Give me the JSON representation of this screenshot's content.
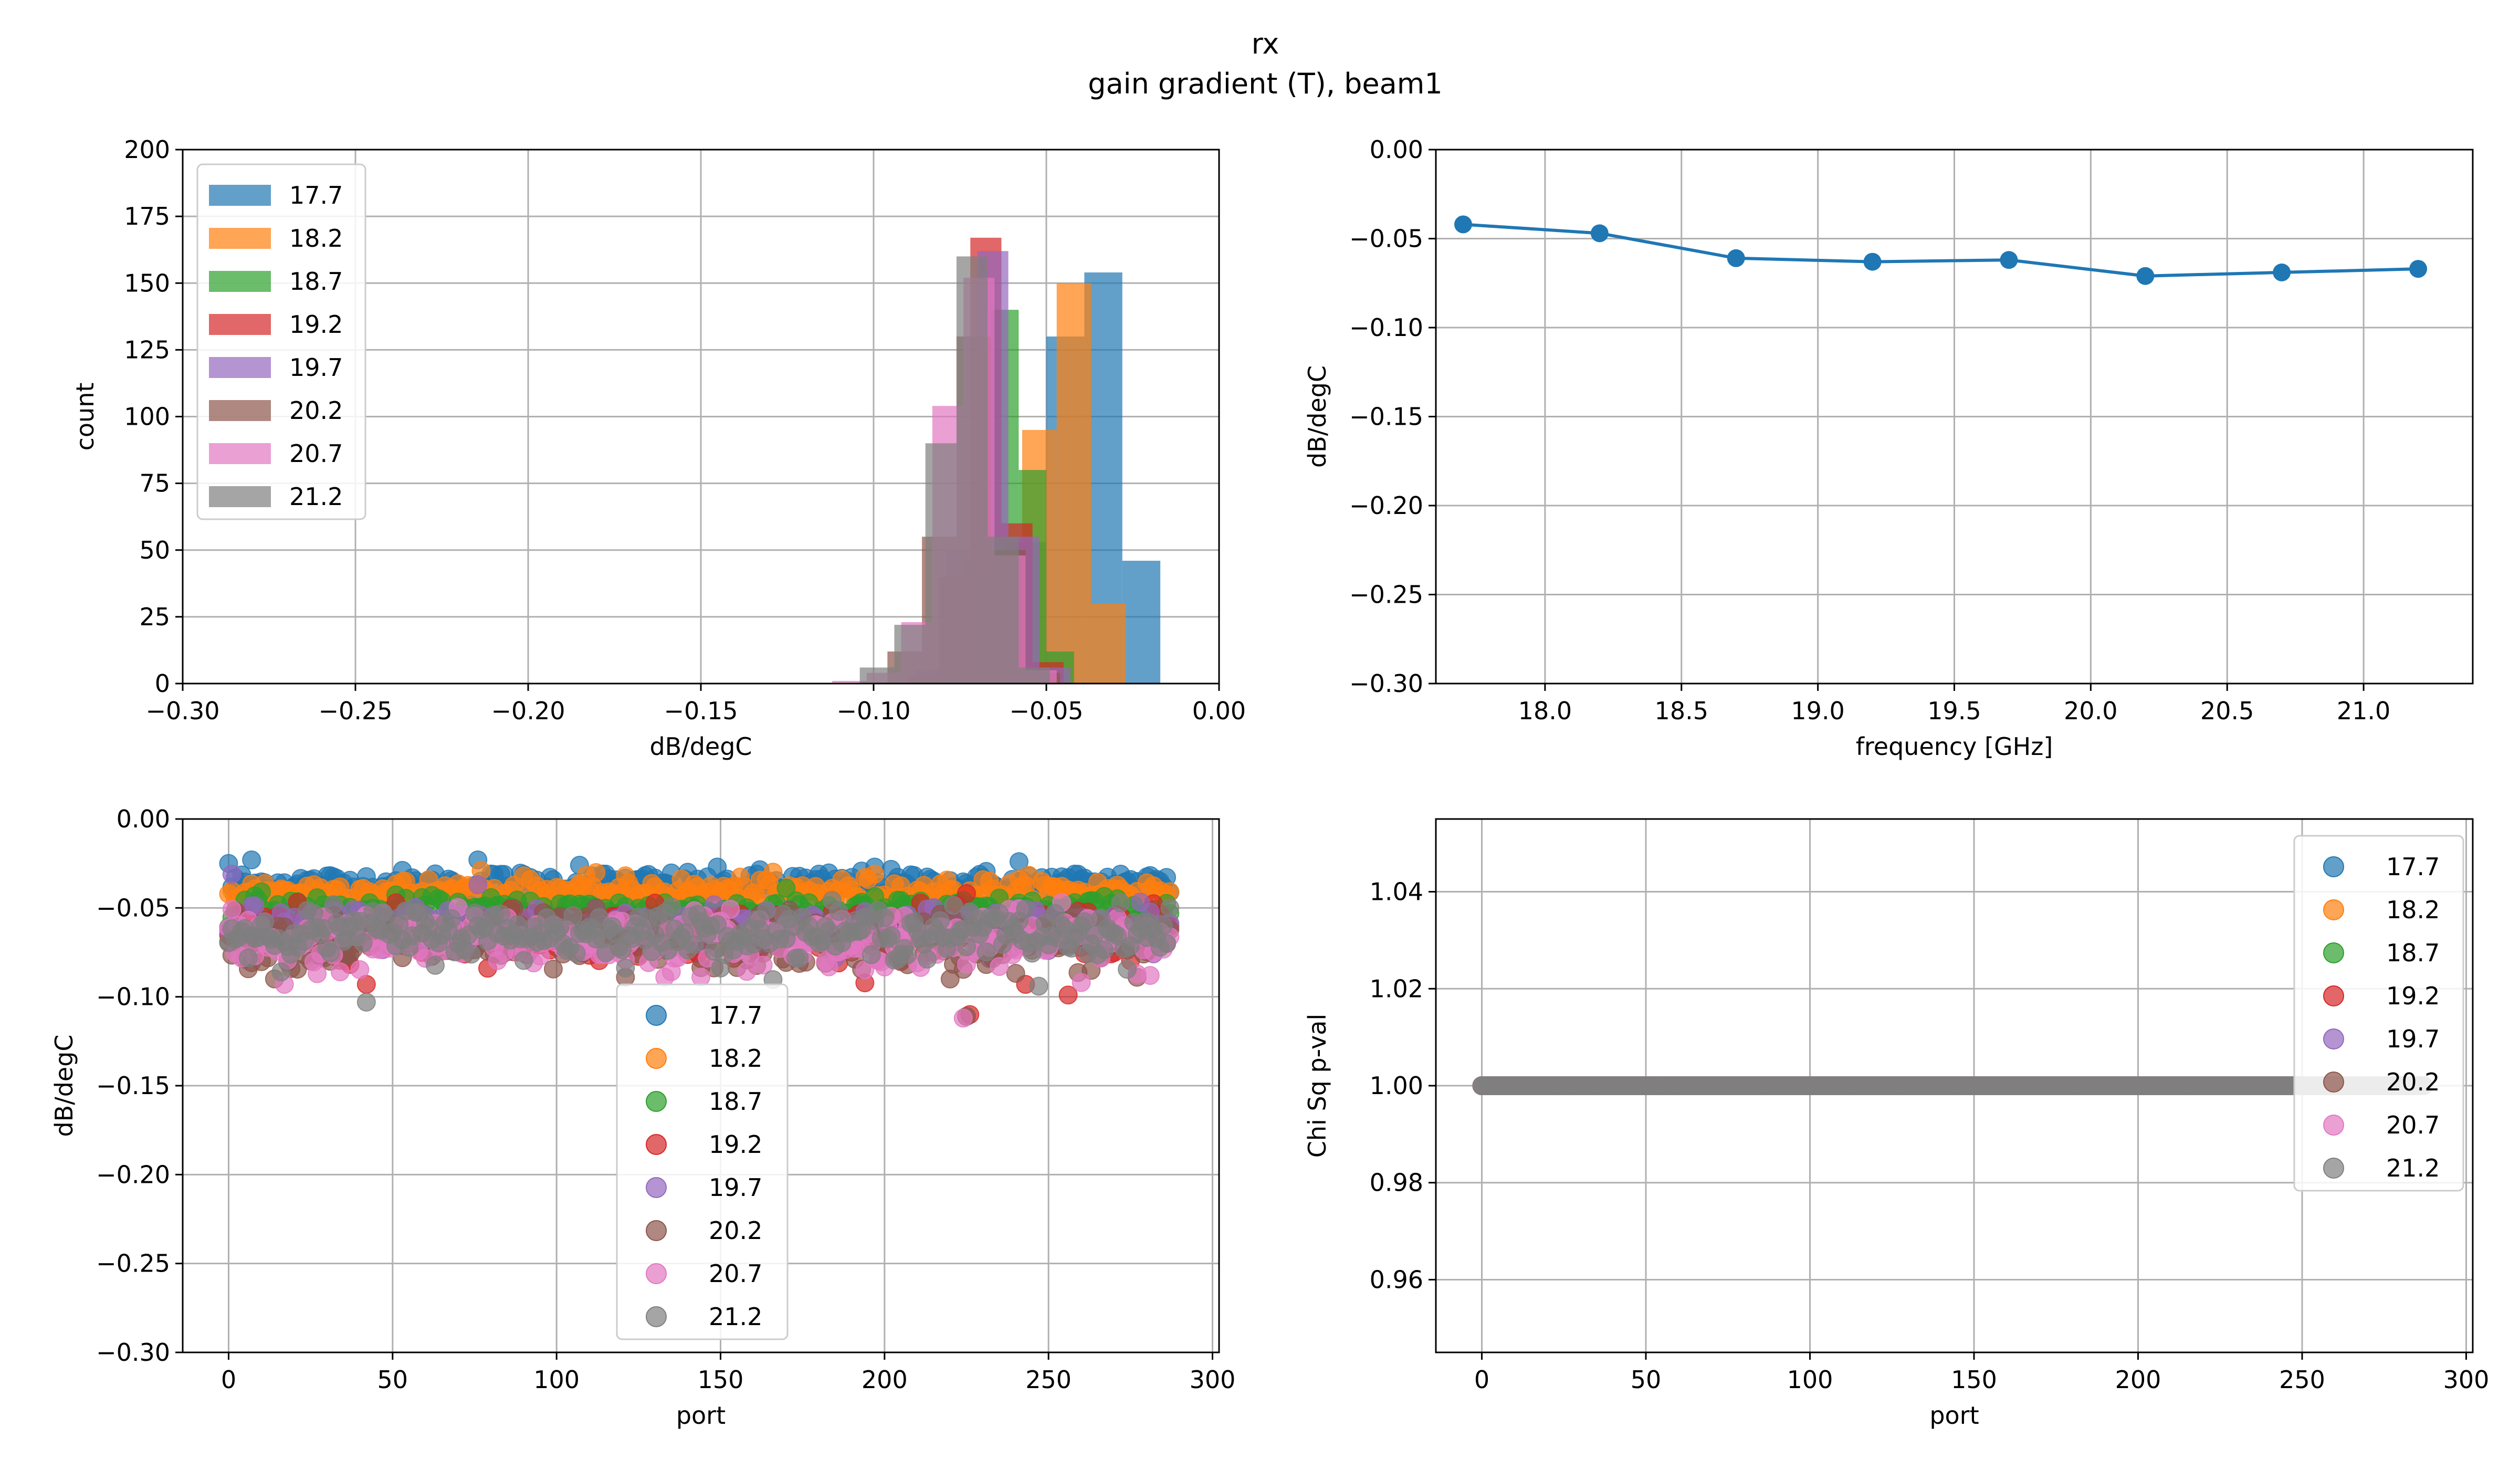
{
  "figure": {
    "title_line1": "rx",
    "title_line2": "gain gradient (T), beam1"
  },
  "colors": {
    "17.7": "#1f77b4",
    "18.2": "#ff7f0e",
    "18.7": "#2ca02c",
    "19.2": "#d62728",
    "19.7": "#9467bd",
    "20.2": "#8c564b",
    "20.7": "#e377c2",
    "21.2": "#7f7f7f"
  },
  "chart_data": [
    {
      "id": "histogram",
      "type": "bar",
      "subtype": "histogram",
      "xlabel": "dB/degC",
      "ylabel": "count",
      "xlim": [
        -0.3,
        0.0
      ],
      "ylim": [
        0,
        200
      ],
      "xticks": [
        "−0.30",
        "−0.25",
        "−0.20",
        "−0.15",
        "−0.10",
        "−0.05",
        "0.00"
      ],
      "yticks": [
        "0",
        "25",
        "50",
        "75",
        "100",
        "125",
        "150",
        "175",
        "200"
      ],
      "grid": true,
      "legend_position": "top-left",
      "series": [
        {
          "name": "17.7",
          "bins": [
            [
              -0.074,
              -0.062,
              4
            ],
            [
              -0.062,
              -0.05,
              53
            ],
            [
              -0.05,
              -0.039,
              130
            ],
            [
              -0.039,
              -0.028,
              154
            ],
            [
              -0.028,
              -0.017,
              46
            ],
            [
              -0.028,
              -0.017,
              0
            ],
            [
              -0.017,
              -0.017,
              0
            ]
          ]
        },
        {
          "name": "18.2",
          "bins": [
            [
              -0.077,
              -0.067,
              2
            ],
            [
              -0.067,
              -0.057,
              15
            ],
            [
              -0.057,
              -0.047,
              95
            ],
            [
              -0.047,
              -0.037,
              150
            ],
            [
              -0.037,
              -0.027,
              30
            ]
          ]
        },
        {
          "name": "18.7",
          "bins": [
            [
              -0.082,
              -0.074,
              3
            ],
            [
              -0.074,
              -0.066,
              45
            ],
            [
              -0.066,
              -0.058,
              140
            ],
            [
              -0.058,
              -0.05,
              80
            ],
            [
              -0.05,
              -0.042,
              12
            ]
          ]
        },
        {
          "name": "19.2",
          "bins": [
            [
              -0.09,
              -0.081,
              3
            ],
            [
              -0.081,
              -0.072,
              40
            ],
            [
              -0.072,
              -0.063,
              167
            ],
            [
              -0.063,
              -0.054,
              60
            ],
            [
              -0.054,
              -0.045,
              8
            ]
          ]
        },
        {
          "name": "19.7",
          "bins": [
            [
              -0.088,
              -0.079,
              5
            ],
            [
              -0.079,
              -0.07,
              50
            ],
            [
              -0.07,
              -0.061,
              162
            ],
            [
              -0.061,
              -0.052,
              55
            ],
            [
              -0.052,
              -0.043,
              6
            ]
          ]
        },
        {
          "name": "20.2",
          "bins": [
            [
              -0.096,
              -0.086,
              12
            ],
            [
              -0.086,
              -0.076,
              55
            ],
            [
              -0.076,
              -0.066,
              130
            ],
            [
              -0.066,
              -0.056,
              50
            ],
            [
              -0.056,
              -0.046,
              4
            ]
          ]
        },
        {
          "name": "20.7",
          "bins": [
            [
              -0.112,
              -0.102,
              1
            ],
            [
              -0.102,
              -0.092,
              4
            ],
            [
              -0.092,
              -0.083,
              23
            ],
            [
              -0.083,
              -0.074,
              104
            ],
            [
              -0.074,
              -0.065,
              152
            ],
            [
              -0.065,
              -0.056,
              48
            ],
            [
              -0.056,
              -0.047,
              5
            ]
          ]
        },
        {
          "name": "21.2",
          "bins": [
            [
              -0.104,
              -0.094,
              6
            ],
            [
              -0.094,
              -0.085,
              22
            ],
            [
              -0.085,
              -0.076,
              90
            ],
            [
              -0.076,
              -0.067,
              160
            ],
            [
              -0.067,
              -0.058,
              55
            ],
            [
              -0.058,
              -0.049,
              6
            ]
          ]
        }
      ]
    },
    {
      "id": "mean-line",
      "type": "line",
      "xlabel": "frequency [GHz]",
      "ylabel": "dB/degC",
      "xlim": [
        17.6,
        21.4
      ],
      "ylim": [
        -0.3,
        0.0
      ],
      "xticks": [
        "18.0",
        "18.5",
        "19.0",
        "19.5",
        "20.0",
        "20.5",
        "21.0"
      ],
      "yticks": [
        "0.00",
        "−0.05",
        "−0.10",
        "−0.15",
        "−0.20",
        "−0.25",
        "−0.30"
      ],
      "grid": true,
      "x": [
        17.7,
        18.2,
        18.7,
        19.2,
        19.7,
        20.2,
        20.7,
        21.2
      ],
      "y": [
        -0.042,
        -0.047,
        -0.061,
        -0.063,
        -0.062,
        -0.071,
        -0.069,
        -0.067
      ]
    },
    {
      "id": "port-scatter",
      "type": "scatter",
      "xlabel": "port",
      "ylabel": "dB/degC",
      "xlim": [
        -14,
        302
      ],
      "ylim": [
        -0.3,
        0.0
      ],
      "xticks": [
        "0",
        "50",
        "100",
        "150",
        "200",
        "250",
        "300"
      ],
      "yticks": [
        "0.00",
        "−0.05",
        "−0.10",
        "−0.15",
        "−0.20",
        "−0.25",
        "−0.30"
      ],
      "grid": true,
      "legend_position": "bottom-center",
      "n_ports": 288,
      "series": [
        {
          "name": "17.7",
          "center": -0.037,
          "spread": 0.004,
          "outliers": [
            [
              0,
              -0.025
            ],
            [
              7,
              -0.023
            ],
            [
              76,
              -0.023
            ],
            [
              107,
              -0.026
            ],
            [
              197,
              -0.027
            ],
            [
              241,
              -0.024
            ],
            [
              272,
              -0.031
            ]
          ]
        },
        {
          "name": "18.2",
          "center": -0.041,
          "spread": 0.004,
          "outliers": [
            [
              77,
              -0.029
            ],
            [
              197,
              -0.031
            ]
          ]
        },
        {
          "name": "18.7",
          "center": -0.052,
          "spread": 0.004,
          "outliers": [
            [
              10,
              -0.041
            ],
            [
              65,
              -0.046
            ],
            [
              173,
              -0.046
            ]
          ]
        },
        {
          "name": "19.2",
          "center": -0.064,
          "spread": 0.007,
          "outliers": [
            [
              42,
              -0.093
            ],
            [
              226,
              -0.11
            ],
            [
              256,
              -0.099
            ],
            [
              243,
              -0.093
            ]
          ]
        },
        {
          "name": "19.7",
          "center": -0.061,
          "spread": 0.006,
          "outliers": [
            [
              1,
              -0.031
            ],
            [
              76,
              -0.037
            ]
          ]
        },
        {
          "name": "20.2",
          "center": -0.069,
          "spread": 0.008,
          "outliers": [
            [
              225,
              -0.111
            ],
            [
              220,
              -0.09
            ],
            [
              121,
              -0.089
            ],
            [
              277,
              -0.089
            ]
          ]
        },
        {
          "name": "20.7",
          "center": -0.068,
          "spread": 0.008,
          "outliers": [
            [
              17,
              -0.093
            ],
            [
              27,
              -0.087
            ],
            [
              133,
              -0.089
            ],
            [
              224,
              -0.112
            ],
            [
              281,
              -0.088
            ]
          ]
        },
        {
          "name": "21.2",
          "center": -0.064,
          "spread": 0.007,
          "outliers": [
            [
              42,
              -0.103
            ],
            [
              247,
              -0.094
            ]
          ]
        }
      ]
    },
    {
      "id": "chisq-scatter",
      "type": "scatter",
      "xlabel": "port",
      "ylabel": "Chi Sq p-val",
      "xlim": [
        -14,
        302
      ],
      "ylim": [
        0.945,
        1.055
      ],
      "xticks": [
        "0",
        "50",
        "100",
        "150",
        "200",
        "250",
        "300"
      ],
      "yticks": [
        "0.96",
        "0.98",
        "1.00",
        "1.02",
        "1.04"
      ],
      "grid": true,
      "legend_position": "top-right",
      "n_ports": 288,
      "value": 1.0,
      "series": [
        {
          "name": "17.7"
        },
        {
          "name": "18.2"
        },
        {
          "name": "18.7"
        },
        {
          "name": "19.2"
        },
        {
          "name": "19.7"
        },
        {
          "name": "20.2"
        },
        {
          "name": "20.7"
        },
        {
          "name": "21.2"
        }
      ]
    }
  ]
}
